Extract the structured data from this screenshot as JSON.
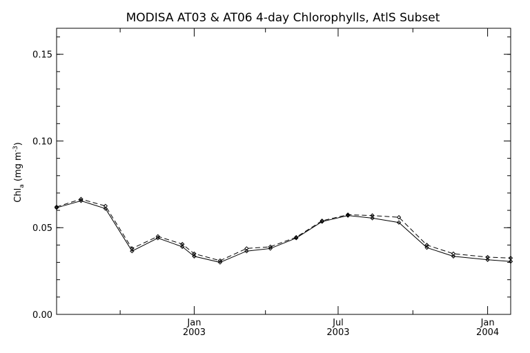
{
  "chart_data": {
    "type": "line",
    "title": "MODISA AT03 & AT06 4-day Chlorophylls, AtlS Subset",
    "ylabel": {
      "prefix": "Chl",
      "sub": "a",
      "units_start": " (mg m",
      "sup": "-3",
      "units_end": ")"
    },
    "xlim": [
      0,
      650
    ],
    "ylim": [
      0.0,
      0.165
    ],
    "y_ticks": [
      {
        "value": 0.0,
        "label": "0.00"
      },
      {
        "value": 0.05,
        "label": "0.05"
      },
      {
        "value": 0.1,
        "label": "0.10"
      },
      {
        "value": 0.15,
        "label": "0.15"
      }
    ],
    "y_minor_step": 0.01,
    "x_ticks": [
      {
        "value": 197,
        "line1": "Jan",
        "line2": "2003"
      },
      {
        "value": 403,
        "line1": "Jul",
        "line2": "2003"
      },
      {
        "value": 617,
        "line1": "Jan",
        "line2": "2004"
      }
    ],
    "x_minor_ticks": [
      91,
      299,
      510
    ],
    "x_dates_note": "",
    "series": [
      {
        "style": "solid",
        "color": "#000000",
        "x": [
          0,
          35,
          70,
          108,
          145,
          180,
          197,
          234,
          272,
          306,
          343,
          380,
          417,
          452,
          490,
          530,
          568,
          617,
          650
        ],
        "y": [
          0.0615,
          0.0655,
          0.061,
          0.0365,
          0.044,
          0.039,
          0.0335,
          0.03,
          0.0365,
          0.038,
          0.044,
          0.0535,
          0.057,
          0.0555,
          0.053,
          0.0385,
          0.0335,
          0.0315,
          0.0305
        ]
      },
      {
        "style": "dashed",
        "color": "#000000",
        "x": [
          0,
          35,
          70,
          108,
          145,
          180,
          197,
          234,
          272,
          306,
          343,
          380,
          417,
          452,
          490,
          530,
          568,
          617,
          650
        ],
        "y": [
          0.062,
          0.0665,
          0.0625,
          0.038,
          0.045,
          0.0405,
          0.035,
          0.031,
          0.038,
          0.039,
          0.0445,
          0.054,
          0.0575,
          0.057,
          0.056,
          0.04,
          0.035,
          0.033,
          0.0325
        ]
      }
    ],
    "grid": false,
    "legend": "none"
  }
}
